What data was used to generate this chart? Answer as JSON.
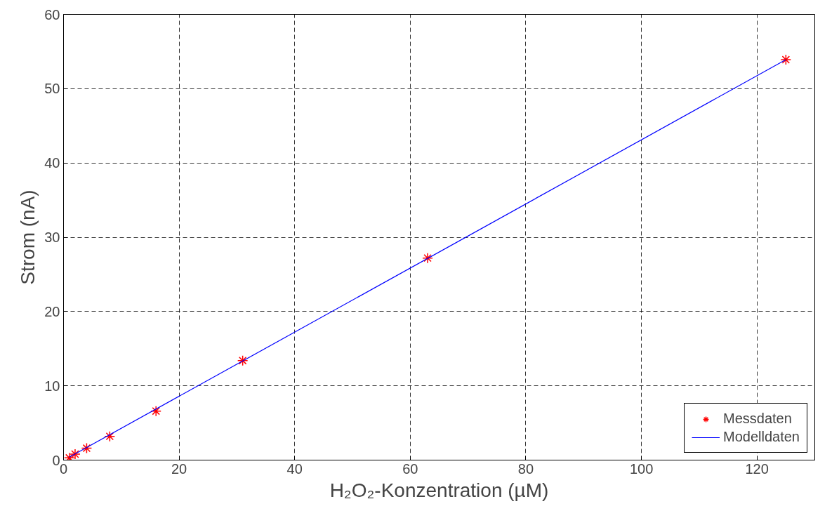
{
  "chart_data": {
    "type": "scatter",
    "xlabel": "H₂O₂-Konzentration (µM)",
    "ylabel": "Strom (nA)",
    "xlim": [
      0,
      130
    ],
    "ylim": [
      0,
      60
    ],
    "xticks": [
      0,
      20,
      40,
      60,
      80,
      100,
      120
    ],
    "yticks": [
      0,
      10,
      20,
      30,
      40,
      50,
      60
    ],
    "grid": true,
    "legend": "bottom right",
    "series": [
      {
        "name": "Messdaten",
        "marker": "cross",
        "color": "#ff0000",
        "x": [
          1,
          2,
          4,
          8,
          16,
          31,
          63,
          125
        ],
        "values": [
          0.3,
          0.8,
          1.6,
          3.2,
          6.6,
          13.4,
          27.2,
          53.9
        ]
      },
      {
        "name": "Modelldaten",
        "type": "line",
        "marker": "none",
        "line_style": "solid",
        "color": "#0000ff",
        "x": [
          1,
          125
        ],
        "values": [
          0.4,
          53.9
        ]
      }
    ]
  }
}
